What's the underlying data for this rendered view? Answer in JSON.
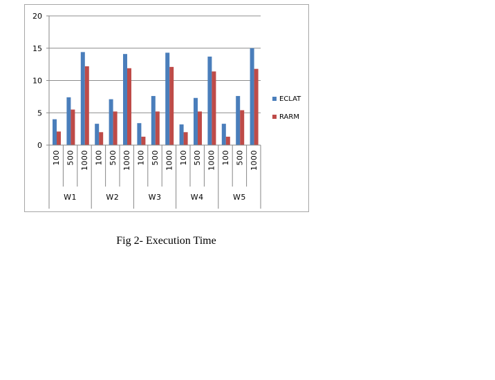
{
  "caption": "Fig 2- Execution Time",
  "colors": {
    "ECLAT": "#4a7ebb",
    "RARM": "#be4b48",
    "grid": "#8c8c8c",
    "axis": "#868686"
  },
  "chart_data": {
    "type": "bar",
    "title": "",
    "xlabel": "",
    "ylabel": "",
    "ylim": [
      0,
      20
    ],
    "yticks": [
      0,
      5,
      10,
      15,
      20
    ],
    "grid": true,
    "legend_position": "right",
    "groups": [
      {
        "label": "W1",
        "categories": [
          "100",
          "500",
          "1000"
        ]
      },
      {
        "label": "W2",
        "categories": [
          "100",
          "500",
          "1000"
        ]
      },
      {
        "label": "W3",
        "categories": [
          "100",
          "500",
          "1000"
        ]
      },
      {
        "label": "W4",
        "categories": [
          "100",
          "500",
          "1000"
        ]
      },
      {
        "label": "W5",
        "categories": [
          "100",
          "500",
          "1000"
        ]
      }
    ],
    "series": [
      {
        "name": "ECLAT",
        "values": [
          4.0,
          7.4,
          14.4,
          3.3,
          7.1,
          14.1,
          3.4,
          7.6,
          14.3,
          3.2,
          7.3,
          13.7,
          3.3,
          7.6,
          15.0
        ]
      },
      {
        "name": "RARM",
        "values": [
          2.1,
          5.5,
          12.2,
          2.0,
          5.2,
          11.9,
          1.3,
          5.2,
          12.1,
          2.0,
          5.2,
          11.4,
          1.3,
          5.4,
          11.8
        ]
      }
    ]
  }
}
